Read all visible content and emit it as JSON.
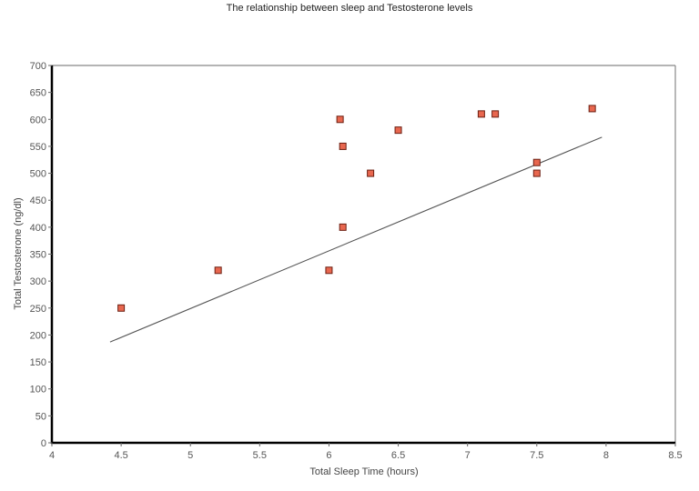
{
  "chart_data": {
    "type": "scatter",
    "title": "The relationship between sleep and Testosterone levels",
    "xlabel": "Total Sleep Time (hours)",
    "ylabel": "Total Testosterone (ng/dl)",
    "xlim": [
      4,
      8.5
    ],
    "ylim": [
      0,
      700
    ],
    "xticks": [
      4,
      4.5,
      5,
      5.5,
      6,
      6.5,
      7,
      7.5,
      8,
      8.5
    ],
    "xtick_labels": [
      "4",
      "4.5",
      "5",
      "5.5",
      "6",
      "6.5",
      "7",
      "7.5",
      "8",
      "8.5"
    ],
    "yticks": [
      0,
      50,
      100,
      150,
      200,
      250,
      300,
      350,
      400,
      450,
      500,
      550,
      600,
      650,
      700
    ],
    "ytick_labels": [
      "0",
      "50",
      "100",
      "150",
      "200",
      "250",
      "300",
      "350",
      "400",
      "450",
      "500",
      "550",
      "600",
      "650",
      "700"
    ],
    "grid": false,
    "legend": null,
    "series": [
      {
        "name": "Testosterone",
        "marker": "square",
        "color": "#e8674f",
        "edge_color": "#6b1f12",
        "points": [
          {
            "x": 4.5,
            "y": 250
          },
          {
            "x": 5.2,
            "y": 320
          },
          {
            "x": 6.0,
            "y": 320
          },
          {
            "x": 6.08,
            "y": 600
          },
          {
            "x": 6.1,
            "y": 550
          },
          {
            "x": 6.1,
            "y": 400
          },
          {
            "x": 6.3,
            "y": 500
          },
          {
            "x": 6.5,
            "y": 580
          },
          {
            "x": 7.1,
            "y": 610
          },
          {
            "x": 7.2,
            "y": 610
          },
          {
            "x": 7.5,
            "y": 520
          },
          {
            "x": 7.5,
            "y": 500
          },
          {
            "x": 7.9,
            "y": 620
          }
        ]
      }
    ],
    "trendline": {
      "type": "linear",
      "color": "#555555",
      "start": {
        "x": 4.42,
        "y": 187
      },
      "end": {
        "x": 7.97,
        "y": 567
      }
    }
  }
}
